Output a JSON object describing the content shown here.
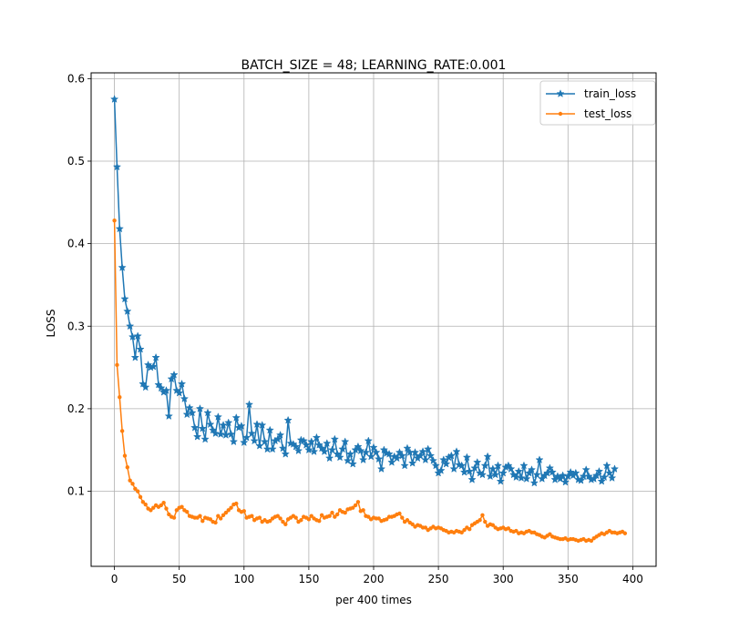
{
  "chart_data": {
    "type": "line",
    "title": "BATCH_SIZE = 48; LEARNING_RATE:0.001",
    "xlabel": "per 400 times",
    "ylabel": "LOSS",
    "xlim": [
      -18,
      418
    ],
    "ylim": [
      0.009,
      0.607
    ],
    "xticks": [
      0,
      50,
      100,
      150,
      200,
      250,
      300,
      350,
      400
    ],
    "yticks": [
      0.1,
      0.2,
      0.3,
      0.4,
      0.5,
      0.6
    ],
    "xtick_labels": [
      "0",
      "50",
      "100",
      "150",
      "200",
      "250",
      "300",
      "350",
      "400"
    ],
    "ytick_labels": [
      "0.1",
      "0.2",
      "0.3",
      "0.4",
      "0.5",
      "0.6"
    ],
    "grid": true,
    "legend_position": "top-right",
    "series": [
      {
        "name": "train_loss",
        "color": "#1f77b4",
        "marker": "star",
        "x_start": 0,
        "x_step": 2,
        "values": [
          0.575,
          0.493,
          0.418,
          0.371,
          0.333,
          0.318,
          0.3,
          0.287,
          0.262,
          0.288,
          0.272,
          0.23,
          0.226,
          0.253,
          0.25,
          0.251,
          0.262,
          0.229,
          0.225,
          0.22,
          0.222,
          0.191,
          0.236,
          0.241,
          0.222,
          0.219,
          0.23,
          0.212,
          0.193,
          0.201,
          0.195,
          0.177,
          0.166,
          0.2,
          0.176,
          0.163,
          0.195,
          0.181,
          0.174,
          0.17,
          0.19,
          0.169,
          0.18,
          0.168,
          0.183,
          0.169,
          0.16,
          0.189,
          0.177,
          0.179,
          0.159,
          0.165,
          0.205,
          0.17,
          0.161,
          0.181,
          0.155,
          0.18,
          0.16,
          0.151,
          0.174,
          0.151,
          0.161,
          0.163,
          0.168,
          0.152,
          0.145,
          0.186,
          0.158,
          0.157,
          0.154,
          0.149,
          0.162,
          0.161,
          0.156,
          0.15,
          0.16,
          0.148,
          0.165,
          0.156,
          0.152,
          0.148,
          0.158,
          0.14,
          0.15,
          0.163,
          0.145,
          0.141,
          0.151,
          0.16,
          0.137,
          0.145,
          0.133,
          0.15,
          0.154,
          0.149,
          0.138,
          0.147,
          0.161,
          0.142,
          0.153,
          0.147,
          0.139,
          0.127,
          0.15,
          0.146,
          0.145,
          0.135,
          0.142,
          0.14,
          0.147,
          0.143,
          0.131,
          0.152,
          0.147,
          0.134,
          0.147,
          0.14,
          0.143,
          0.148,
          0.138,
          0.151,
          0.143,
          0.137,
          0.131,
          0.122,
          0.125,
          0.138,
          0.133,
          0.141,
          0.143,
          0.127,
          0.148,
          0.132,
          0.131,
          0.123,
          0.141,
          0.124,
          0.114,
          0.128,
          0.135,
          0.122,
          0.12,
          0.131,
          0.142,
          0.118,
          0.127,
          0.12,
          0.131,
          0.112,
          0.122,
          0.129,
          0.131,
          0.127,
          0.12,
          0.117,
          0.124,
          0.116,
          0.131,
          0.115,
          0.122,
          0.126,
          0.11,
          0.12,
          0.138,
          0.115,
          0.119,
          0.122,
          0.128,
          0.123,
          0.114,
          0.118,
          0.115,
          0.119,
          0.111,
          0.118,
          0.123,
          0.119,
          0.122,
          0.114,
          0.113,
          0.118,
          0.126,
          0.118,
          0.114,
          0.115,
          0.119,
          0.124,
          0.112,
          0.117,
          0.131,
          0.122,
          0.116,
          0.127
        ]
      },
      {
        "name": "test_loss",
        "color": "#ff7f0e",
        "marker": "point",
        "x_start": 0,
        "x_step": 2,
        "values": [
          0.428,
          0.253,
          0.214,
          0.173,
          0.143,
          0.129,
          0.113,
          0.109,
          0.103,
          0.1,
          0.093,
          0.087,
          0.084,
          0.079,
          0.077,
          0.08,
          0.083,
          0.081,
          0.083,
          0.086,
          0.079,
          0.072,
          0.069,
          0.068,
          0.077,
          0.08,
          0.081,
          0.077,
          0.075,
          0.07,
          0.069,
          0.068,
          0.068,
          0.07,
          0.064,
          0.068,
          0.067,
          0.066,
          0.063,
          0.062,
          0.07,
          0.067,
          0.071,
          0.074,
          0.077,
          0.08,
          0.084,
          0.085,
          0.077,
          0.075,
          0.076,
          0.068,
          0.069,
          0.07,
          0.065,
          0.067,
          0.068,
          0.063,
          0.065,
          0.063,
          0.064,
          0.067,
          0.069,
          0.07,
          0.067,
          0.063,
          0.06,
          0.066,
          0.068,
          0.07,
          0.068,
          0.063,
          0.065,
          0.069,
          0.068,
          0.066,
          0.07,
          0.067,
          0.065,
          0.064,
          0.071,
          0.068,
          0.069,
          0.07,
          0.074,
          0.069,
          0.072,
          0.077,
          0.075,
          0.074,
          0.078,
          0.079,
          0.08,
          0.083,
          0.087,
          0.076,
          0.077,
          0.07,
          0.069,
          0.066,
          0.068,
          0.067,
          0.067,
          0.064,
          0.065,
          0.066,
          0.069,
          0.069,
          0.07,
          0.072,
          0.073,
          0.068,
          0.063,
          0.065,
          0.062,
          0.06,
          0.057,
          0.059,
          0.058,
          0.056,
          0.056,
          0.053,
          0.055,
          0.057,
          0.055,
          0.056,
          0.055,
          0.053,
          0.052,
          0.05,
          0.051,
          0.05,
          0.052,
          0.051,
          0.05,
          0.053,
          0.056,
          0.054,
          0.059,
          0.061,
          0.063,
          0.065,
          0.071,
          0.063,
          0.058,
          0.06,
          0.059,
          0.056,
          0.054,
          0.055,
          0.056,
          0.054,
          0.055,
          0.052,
          0.051,
          0.052,
          0.049,
          0.05,
          0.049,
          0.051,
          0.052,
          0.05,
          0.05,
          0.048,
          0.047,
          0.045,
          0.044,
          0.046,
          0.048,
          0.045,
          0.044,
          0.043,
          0.042,
          0.042,
          0.043,
          0.041,
          0.042,
          0.042,
          0.041,
          0.04,
          0.041,
          0.042,
          0.04,
          0.041,
          0.04,
          0.043,
          0.045,
          0.047,
          0.049,
          0.048,
          0.05,
          0.052,
          0.05,
          0.05,
          0.049,
          0.05,
          0.051,
          0.049
        ]
      }
    ]
  }
}
